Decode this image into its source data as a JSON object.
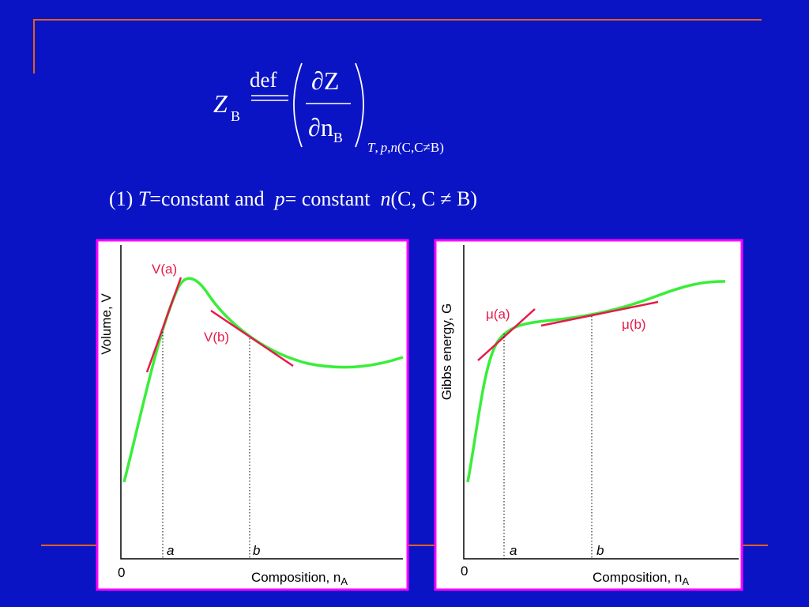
{
  "formula": {
    "symbol": "Z",
    "symbol_sub": "B",
    "def": "def",
    "numerator": "∂Z",
    "denominator": "∂n",
    "denominator_sub": "B",
    "constraint_T": "T",
    "constraint_sep1": ",",
    "constraint_p": "p",
    "constraint_sep2": ",",
    "constraint_n": "n",
    "constraint_rest": "(C,C≠B)"
  },
  "condition": {
    "prefix": "(1) ",
    "T": "T",
    "t_text": "=constant and  ",
    "p": "p",
    "p_text": "= constant  ",
    "n": "n",
    "n_text": "(C, C ≠ B)"
  },
  "diagrams": [
    {
      "y_label": "Volume,  V",
      "tangent_a": "V(a)",
      "tangent_b": "V(b)",
      "point_a": "a",
      "point_b": "b",
      "origin": "0",
      "x_label": "Composition,  n",
      "x_label_sub": "A"
    },
    {
      "y_label": "Gibbs energy,  G",
      "tangent_a": "μ(a)",
      "tangent_b": "μ(b)",
      "point_a": "a",
      "point_b": "b",
      "origin": "0",
      "x_label": "Composition,  n",
      "x_label_sub": "A"
    }
  ]
}
